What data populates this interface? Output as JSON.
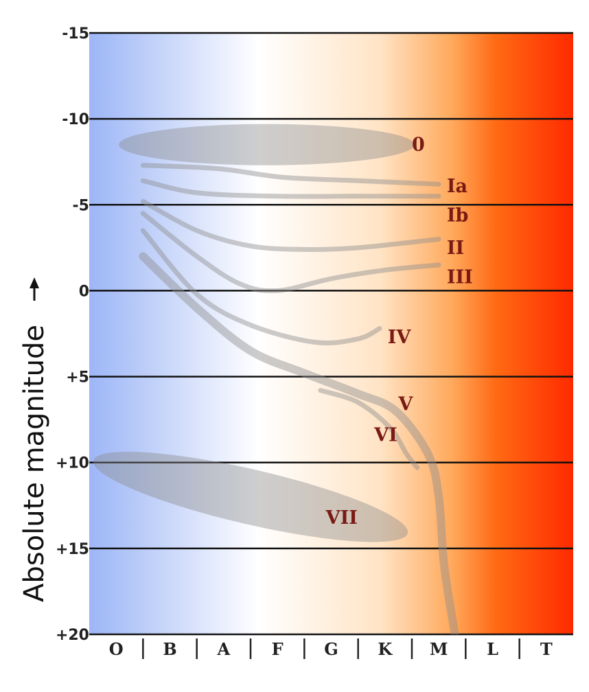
{
  "chart_data": {
    "type": "line",
    "ylabel": "Absolute magnitude",
    "y_ticks": [
      "-15",
      "-10",
      "-5",
      "0",
      "+5",
      "+10",
      "+15",
      "+20"
    ],
    "ylim": [
      -15,
      20
    ],
    "y_inverted": true,
    "categories": [
      "O",
      "B",
      "A",
      "F",
      "G",
      "K",
      "M",
      "L",
      "T"
    ],
    "grid": true,
    "background_gradient": {
      "colors": [
        "#9db6f7",
        "#b8caf8",
        "#ffffff",
        "#ffe4c6",
        "#ffa95c",
        "#ff6a14",
        "#ff2a00"
      ]
    },
    "series": [
      {
        "name": "0",
        "kind": "region",
        "center": [
          3.3,
          -8.5
        ],
        "rx": 2.75,
        "ry": 1.2
      },
      {
        "name": "Ia",
        "points": [
          [
            1.0,
            -7.3
          ],
          [
            2.4,
            -7.1
          ],
          [
            3.6,
            -6.6
          ],
          [
            5.0,
            -6.4
          ],
          [
            6.5,
            -6.2
          ]
        ]
      },
      {
        "name": "Ib",
        "points": [
          [
            1.0,
            -6.4
          ],
          [
            2.0,
            -5.7
          ],
          [
            3.5,
            -5.5
          ],
          [
            5.0,
            -5.5
          ],
          [
            6.5,
            -5.5
          ]
        ]
      },
      {
        "name": "II",
        "points": [
          [
            1.0,
            -5.2
          ],
          [
            2.0,
            -3.5
          ],
          [
            3.0,
            -2.6
          ],
          [
            4.0,
            -2.4
          ],
          [
            5.0,
            -2.5
          ],
          [
            6.5,
            -3.0
          ]
        ]
      },
      {
        "name": "III",
        "points": [
          [
            1.0,
            -4.5
          ],
          [
            2.0,
            -2.0
          ],
          [
            2.8,
            -0.4
          ],
          [
            3.5,
            0.0
          ],
          [
            4.5,
            -0.7
          ],
          [
            5.5,
            -1.2
          ],
          [
            6.5,
            -1.5
          ]
        ]
      },
      {
        "name": "IV",
        "points": [
          [
            1.0,
            -3.5
          ],
          [
            2.0,
            0.2
          ],
          [
            3.0,
            2.0
          ],
          [
            4.2,
            3.0
          ],
          [
            5.0,
            2.8
          ],
          [
            5.4,
            2.2
          ]
        ]
      },
      {
        "name": "V",
        "points": [
          [
            1.0,
            -2.0
          ],
          [
            2.0,
            1.0
          ],
          [
            3.0,
            3.5
          ],
          [
            4.0,
            4.8
          ],
          [
            5.0,
            6.0
          ],
          [
            5.7,
            7.0
          ],
          [
            6.3,
            9.5
          ],
          [
            6.5,
            12.0
          ],
          [
            6.6,
            16.0
          ],
          [
            6.8,
            20.0
          ]
        ]
      },
      {
        "name": "VI",
        "points": [
          [
            4.3,
            5.8
          ],
          [
            5.0,
            6.5
          ],
          [
            5.6,
            8.0
          ],
          [
            5.9,
            9.5
          ],
          [
            6.1,
            10.3
          ]
        ]
      },
      {
        "name": "VII",
        "kind": "region",
        "center": [
          3.0,
          12.0
        ],
        "rx": 3.0,
        "ry": 1.6,
        "rotation_deg": 13
      }
    ]
  }
}
